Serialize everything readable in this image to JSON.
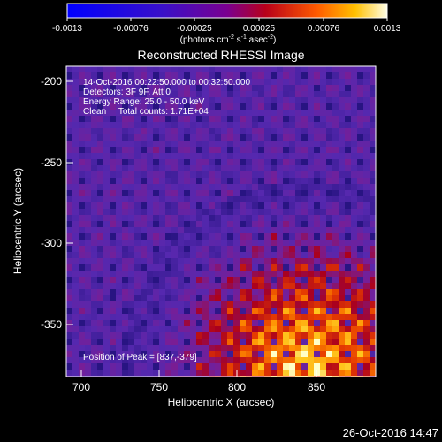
{
  "colorbar": {
    "ticks": [
      "-0.0013",
      "-0.00076",
      "-0.00025",
      "0.00025",
      "0.00076",
      "0.0013"
    ],
    "unit_main": "(photons cm",
    "unit_exp1": "-2",
    "unit_mid": " s",
    "unit_exp2": "-1",
    "unit_end": " asec",
    "unit_exp3": "-2",
    "unit_close": ")"
  },
  "plot": {
    "title": "Reconstructed RHESSI Image",
    "annotations": [
      "14-Oct-2016 00:22:50.000 to 00:32:50.000",
      "Detectors: 3F 9F, Att 0",
      "Energy Range: 25.0 - 50.0 keV",
      "Clean     Total counts: 1.71E+04"
    ],
    "peak_label": "Position of Peak = [837,-379]",
    "x_axis_label": "Heliocentric X (arcsec)",
    "y_axis_label": "Heliocentric Y (arcsec)",
    "x_ticks": [
      "700",
      "750",
      "800",
      "850"
    ],
    "y_ticks": [
      "-200",
      "-250",
      "-300",
      "-350"
    ]
  },
  "footer": {
    "timestamp": "26-Oct-2016 14:47"
  }
}
